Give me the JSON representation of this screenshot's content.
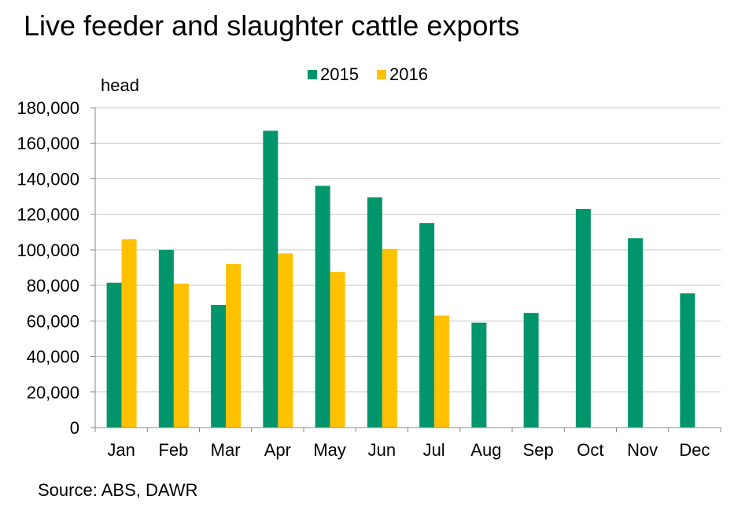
{
  "chart_data": {
    "type": "bar",
    "title": "Live feeder and slaughter cattle exports",
    "ylabel": "head",
    "xlabel": "",
    "categories": [
      "Jan",
      "Feb",
      "Mar",
      "Apr",
      "May",
      "Jun",
      "Jul",
      "Aug",
      "Sep",
      "Oct",
      "Nov",
      "Dec"
    ],
    "series": [
      {
        "name": "2015",
        "color": "#00956A",
        "values": [
          81500,
          100000,
          69000,
          167000,
          136000,
          129500,
          115000,
          59000,
          64500,
          123000,
          106500,
          75500
        ]
      },
      {
        "name": "2016",
        "color": "#FFC000",
        "values": [
          106000,
          81000,
          92000,
          98000,
          87500,
          100500,
          63000,
          null,
          null,
          null,
          null,
          null
        ]
      }
    ],
    "ylim": [
      0,
      180000
    ],
    "yticks": [
      "0",
      "20,000",
      "40,000",
      "60,000",
      "80,000",
      "100,000",
      "120,000",
      "140,000",
      "160,000",
      "180,000"
    ],
    "grid": true,
    "legend_position": "top-center",
    "source": "Source: ABS, DAWR"
  }
}
